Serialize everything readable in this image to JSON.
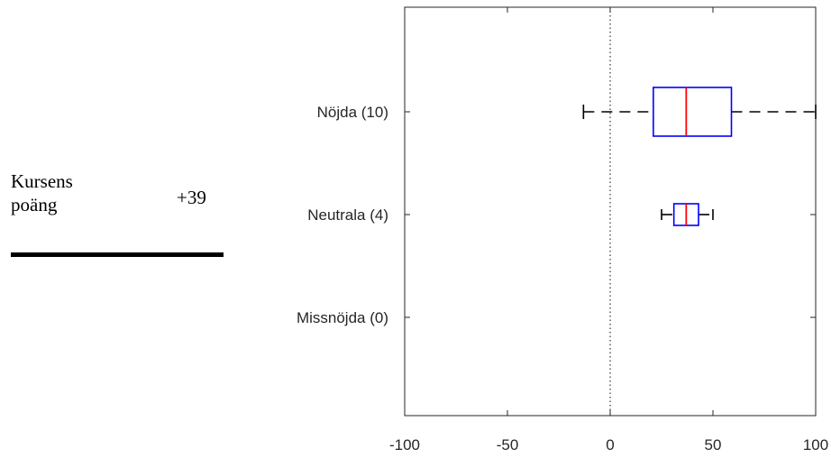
{
  "summary": {
    "label_line1": "Kursens",
    "label_line2": "poäng",
    "value": "+39"
  },
  "chart_data": {
    "type": "boxplot",
    "orientation": "horizontal",
    "title": "",
    "xlabel": "",
    "ylabel": "",
    "xlim": [
      -100,
      100
    ],
    "xticks": [
      -100,
      -50,
      0,
      50,
      100
    ],
    "reference_line_x": 0,
    "categories": [
      "Nöjda (10)",
      "Neutrala (4)",
      "Missnöjda (0)"
    ],
    "boxes": [
      {
        "category": "Nöjda (10)",
        "min": -13,
        "q1": 21,
        "median": 37,
        "q3": 59,
        "max": 100
      },
      {
        "category": "Neutrala (4)",
        "min": 25,
        "q1": 31,
        "median": 37,
        "q3": 43,
        "max": 50
      },
      {
        "category": "Missnöjda (0)"
      }
    ],
    "colors": {
      "box": "#0000ff",
      "median": "#ff0000",
      "whisker": "#000000"
    }
  }
}
